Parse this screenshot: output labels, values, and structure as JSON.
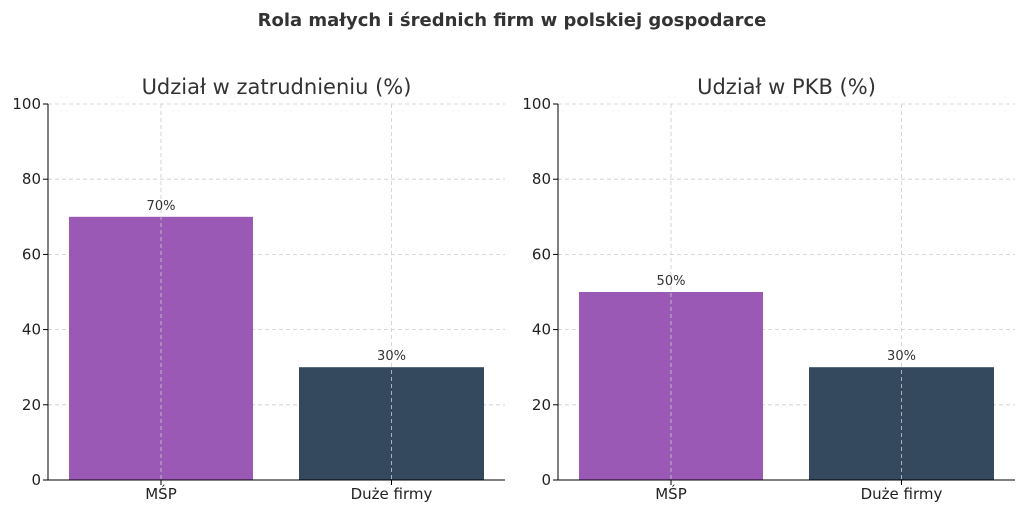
{
  "figure": {
    "title": "Rola małych i średnich firm w polskiej gospodarce"
  },
  "colors": {
    "sme": "#9b59b6",
    "large": "#34495e"
  },
  "chart_data": [
    {
      "type": "bar",
      "title": "Udział w zatrudnieniu (%)",
      "categories": [
        "MŚP",
        "Duże firmy"
      ],
      "values": [
        70,
        30
      ],
      "data_labels": [
        "70%",
        "30%"
      ],
      "ylim": [
        0,
        100
      ],
      "yticks": [
        "0",
        "20",
        "40",
        "60",
        "80",
        "100"
      ],
      "grid": true,
      "bar_colors": [
        "#9b59b6",
        "#34495e"
      ]
    },
    {
      "type": "bar",
      "title": "Udział w PKB (%)",
      "categories": [
        "MŚP",
        "Duże firmy"
      ],
      "values": [
        50,
        30
      ],
      "data_labels": [
        "50%",
        "30%"
      ],
      "ylim": [
        0,
        100
      ],
      "yticks": [
        "0",
        "20",
        "40",
        "60",
        "80",
        "100"
      ],
      "grid": true,
      "bar_colors": [
        "#9b59b6",
        "#34495e"
      ]
    }
  ]
}
